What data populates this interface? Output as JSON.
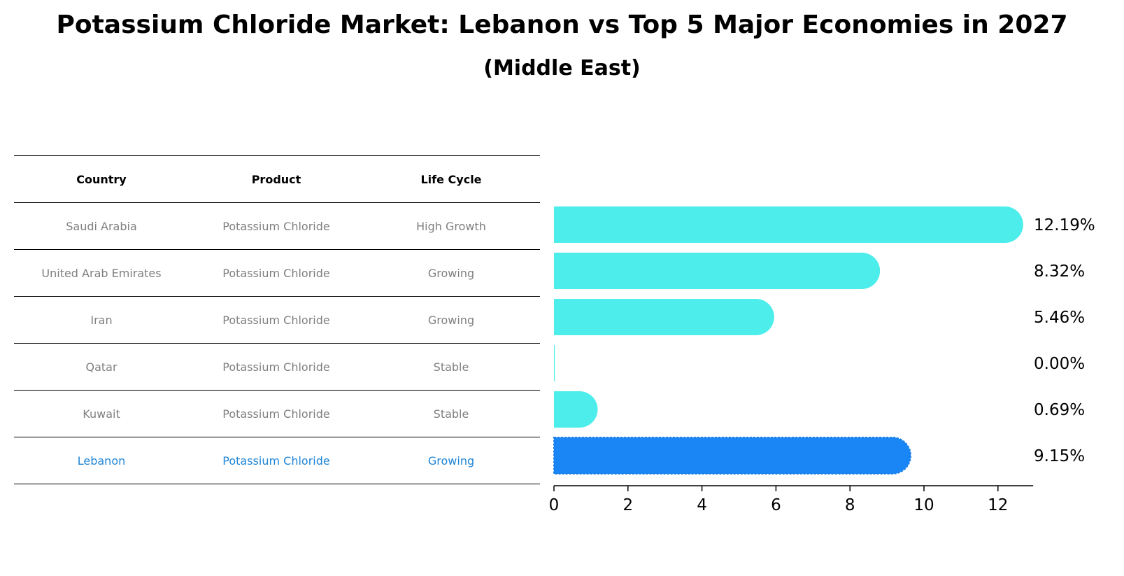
{
  "title": "Potassium Chloride Market: Lebanon vs Top 5 Major Economies in 2027",
  "subtitle": "(Middle East)",
  "table": {
    "headers": [
      "Country",
      "Product",
      "Life Cycle"
    ],
    "rows": [
      {
        "country": "Saudi Arabia",
        "product": "Potassium Chloride",
        "life_cycle": "High Growth"
      },
      {
        "country": "United Arab Emirates",
        "product": "Potassium Chloride",
        "life_cycle": "Growing"
      },
      {
        "country": "Iran",
        "product": "Potassium Chloride",
        "life_cycle": "Growing"
      },
      {
        "country": "Qatar",
        "product": "Potassium Chloride",
        "life_cycle": "Stable"
      },
      {
        "country": "Kuwait",
        "product": "Potassium Chloride",
        "life_cycle": "Stable"
      },
      {
        "country": "Lebanon",
        "product": "Potassium Chloride",
        "life_cycle": "Growing"
      }
    ]
  },
  "colors": {
    "bar": "#4DEDEB",
    "highlight_bar": "#1A85F5",
    "highlight_text": "#1f85d6",
    "muted_text": "#7f7f7f"
  },
  "chart_data": {
    "type": "bar",
    "orientation": "horizontal",
    "categories": [
      "Saudi Arabia",
      "United Arab Emirates",
      "Iran",
      "Qatar",
      "Kuwait",
      "Lebanon"
    ],
    "values": [
      12.19,
      8.32,
      5.46,
      0.0,
      0.69,
      9.15
    ],
    "value_labels": [
      "12.19%",
      "8.32%",
      "5.46%",
      "0.00%",
      "0.69%",
      "9.15%"
    ],
    "highlight_index": 5,
    "xlim": [
      0,
      12.8
    ],
    "xticks": [
      0,
      2,
      4,
      6,
      8,
      10,
      12
    ],
    "xtick_labels": [
      "0",
      "2",
      "4",
      "6",
      "8",
      "10",
      "12"
    ],
    "grid": false,
    "legend": "none"
  }
}
